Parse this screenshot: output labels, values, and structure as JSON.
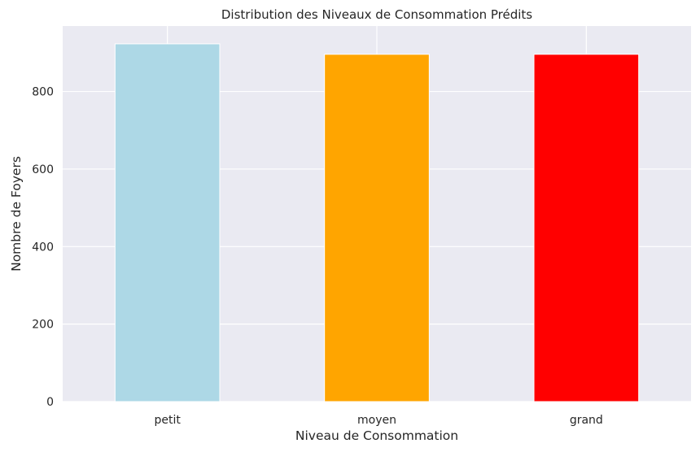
{
  "chart_data": {
    "type": "bar",
    "title": "Distribution des Niveaux de Consommation Prédits",
    "xlabel": "Niveau de Consommation",
    "ylabel": "Nombre de Foyers",
    "categories": [
      "petit",
      "moyen",
      "grand"
    ],
    "values": [
      923,
      896,
      896
    ],
    "colors": [
      "#add8e6",
      "#ffa500",
      "#ff0000"
    ],
    "ylim": [
      0,
      969
    ],
    "yticks": [
      0,
      200,
      400,
      600,
      800
    ],
    "yticks_labels": [
      "0",
      "200",
      "400",
      "600",
      "800"
    ],
    "grid": true,
    "background": "#eaeaf2",
    "legend": "none"
  }
}
